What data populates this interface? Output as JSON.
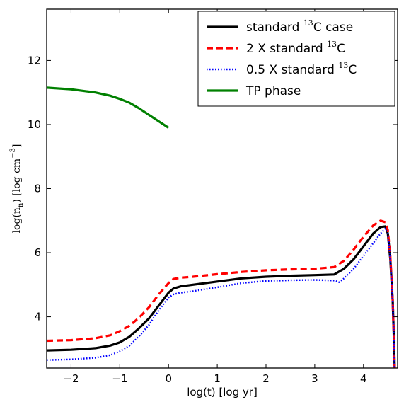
{
  "chart_data": {
    "type": "line",
    "title": "",
    "xlabel": "log(t)  [log yr]",
    "ylabel": {
      "base": "log(n",
      "sub": "n",
      "mid": ")  [log cm",
      "sup": "−3",
      "end": "]"
    },
    "xlim": [
      -2.5,
      4.7
    ],
    "ylim": [
      2.4,
      13.6
    ],
    "xticks": [
      -2,
      -1,
      0,
      1,
      2,
      3,
      4
    ],
    "xtick_labels": [
      "−2",
      "−1",
      "0",
      "1",
      "2",
      "3",
      "4"
    ],
    "yticks": [
      4,
      6,
      8,
      10,
      12
    ],
    "ytick_labels": [
      "4",
      "6",
      "8",
      "10",
      "12"
    ],
    "grid": false,
    "legend_placement": "top-right",
    "series": [
      {
        "name": "standard ¹³C case",
        "legend": {
          "pre": "standard ",
          "sup": "13",
          "post": "C case"
        },
        "color": "#000000",
        "style": "solid",
        "x": [
          -2.5,
          -2.0,
          -1.5,
          -1.2,
          -1.0,
          -0.8,
          -0.6,
          -0.4,
          -0.2,
          0.0,
          0.1,
          0.25,
          0.5,
          1.0,
          1.5,
          2.0,
          2.5,
          3.0,
          3.4,
          3.6,
          3.8,
          4.0,
          4.2,
          4.35,
          4.45,
          4.5,
          4.55,
          4.6,
          4.62,
          4.64
        ],
        "y": [
          2.95,
          2.97,
          3.02,
          3.1,
          3.2,
          3.38,
          3.65,
          3.95,
          4.35,
          4.75,
          4.88,
          4.95,
          5.0,
          5.1,
          5.2,
          5.25,
          5.28,
          5.3,
          5.32,
          5.5,
          5.8,
          6.2,
          6.6,
          6.8,
          6.82,
          6.6,
          5.8,
          4.5,
          3.5,
          2.4
        ]
      },
      {
        "name": "2 X standard ¹³C",
        "legend": {
          "pre": "2 X standard ",
          "sup": "13",
          "post": "C"
        },
        "color": "#ff0000",
        "style": "dashed",
        "x": [
          -2.5,
          -2.0,
          -1.5,
          -1.2,
          -1.0,
          -0.8,
          -0.6,
          -0.4,
          -0.2,
          0.0,
          0.1,
          0.25,
          0.5,
          1.0,
          1.5,
          2.0,
          2.5,
          3.0,
          3.4,
          3.6,
          3.8,
          4.0,
          4.2,
          4.35,
          4.45,
          4.5,
          4.55,
          4.6,
          4.62,
          4.64
        ],
        "y": [
          3.25,
          3.27,
          3.33,
          3.42,
          3.55,
          3.72,
          3.98,
          4.3,
          4.7,
          5.05,
          5.18,
          5.22,
          5.25,
          5.33,
          5.4,
          5.45,
          5.48,
          5.5,
          5.55,
          5.75,
          6.1,
          6.5,
          6.85,
          7.0,
          6.95,
          6.7,
          5.9,
          4.5,
          3.5,
          2.4
        ]
      },
      {
        "name": "0.5 X standard ¹³C",
        "legend": {
          "pre": "0.5 X standard ",
          "sup": "13",
          "post": "C"
        },
        "color": "#0000ff",
        "style": "dotted",
        "x": [
          -2.5,
          -2.0,
          -1.5,
          -1.2,
          -1.0,
          -0.8,
          -0.6,
          -0.4,
          -0.2,
          0.0,
          0.1,
          0.25,
          0.5,
          1.0,
          1.5,
          2.0,
          2.5,
          3.0,
          3.4,
          3.5,
          3.6,
          3.8,
          4.0,
          4.2,
          4.35,
          4.45,
          4.5,
          4.55,
          4.6,
          4.62,
          4.64
        ],
        "y": [
          2.65,
          2.67,
          2.72,
          2.8,
          2.92,
          3.1,
          3.4,
          3.75,
          4.2,
          4.6,
          4.7,
          4.75,
          4.8,
          4.92,
          5.05,
          5.12,
          5.14,
          5.15,
          5.13,
          5.08,
          5.2,
          5.5,
          5.9,
          6.3,
          6.6,
          6.75,
          6.6,
          5.8,
          4.5,
          3.5,
          2.4
        ]
      },
      {
        "name": "TP phase",
        "legend": {
          "pre": "TP phase",
          "sup": "",
          "post": ""
        },
        "color": "#008000",
        "style": "solid",
        "x": [
          -2.5,
          -2.0,
          -1.5,
          -1.2,
          -1.0,
          -0.8,
          -0.6,
          -0.4,
          -0.2,
          0.0
        ],
        "y": [
          11.15,
          11.1,
          11.0,
          10.9,
          10.8,
          10.68,
          10.5,
          10.3,
          10.1,
          9.9
        ]
      }
    ]
  }
}
